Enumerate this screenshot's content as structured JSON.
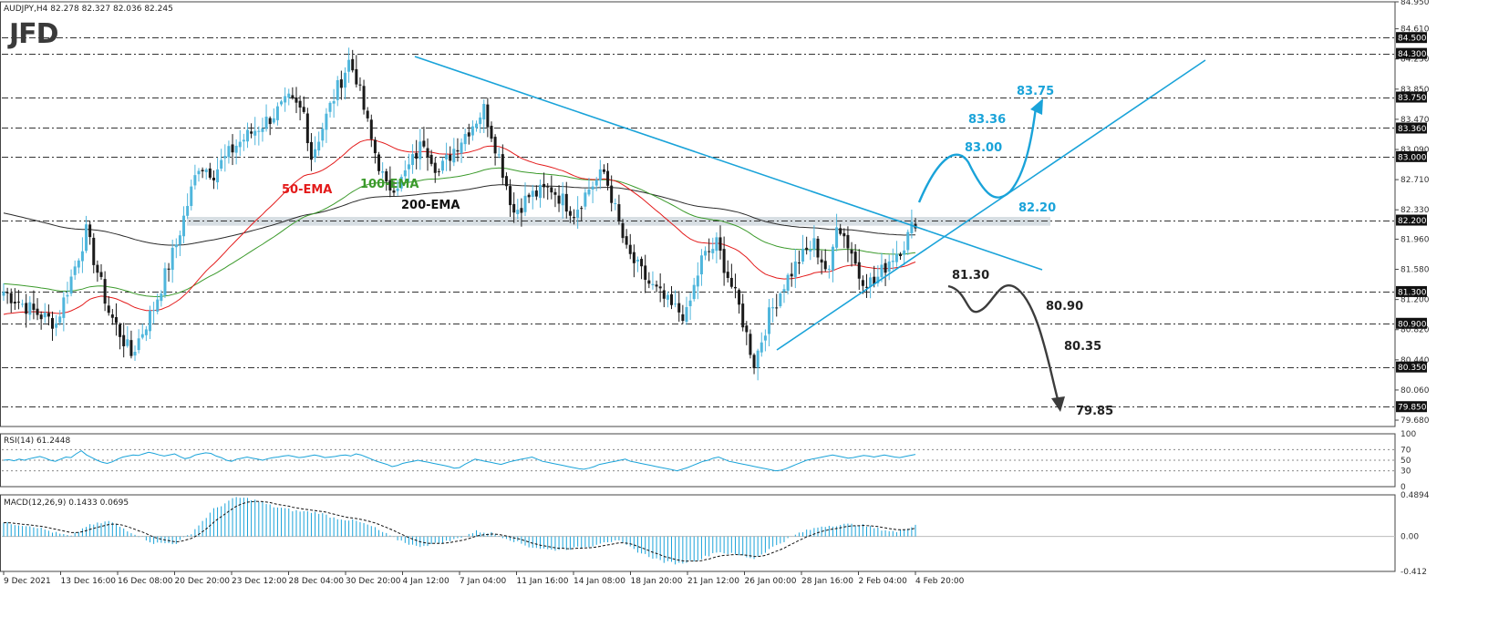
{
  "header": {
    "symbol_line": "AUDJPY,H4  82.278 82.327 82.036 82.245",
    "logo": "JFD"
  },
  "colors": {
    "bull": "#4fb6dc",
    "bear": "#1a1a1a",
    "ema50": "#e31b1b",
    "ema100": "#3b9a2b",
    "ema200": "#2a2a2a",
    "trend": "#1aa3d9",
    "bear_path": "#3c3c3c",
    "zone": "#c9d3da"
  },
  "chart_data": [
    {
      "type": "candlestick",
      "title": "AUDJPY,H4",
      "ohlc_readout": [
        82.278,
        82.327,
        82.036,
        82.245
      ],
      "ylim": [
        79.6,
        84.95
      ],
      "y_ticks": [
        "84.950",
        "84.610",
        "84.300",
        "84.230",
        "83.850",
        "83.470",
        "83.360",
        "83.090",
        "83.000",
        "82.710",
        "82.330",
        "82.200",
        "81.960",
        "81.580",
        "81.300",
        "81.200",
        "80.900",
        "80.820",
        "80.440",
        "80.350",
        "80.060",
        "79.850",
        "79.680"
      ],
      "highlighted_levels": [
        "84.500",
        "84.300",
        "83.750",
        "83.360",
        "83.000",
        "82.200",
        "81.300",
        "80.900",
        "80.350",
        "79.850"
      ],
      "x_ticks": [
        "9 Dec 2021",
        "13 Dec 16:00",
        "16 Dec 08:00",
        "20 Dec 20:00",
        "23 Dec 12:00",
        "28 Dec 04:00",
        "30 Dec 20:00",
        "4 Jan 12:00",
        "7 Jan 04:00",
        "11 Jan 16:00",
        "14 Jan 08:00",
        "18 Jan 20:00",
        "21 Jan 12:00",
        "26 Jan 00:00",
        "28 Jan 16:00",
        "2 Feb 04:00",
        "4 Feb 20:00"
      ],
      "price_waypoints": [
        [
          0,
          81.3
        ],
        [
          8,
          81.05
        ],
        [
          14,
          80.9
        ],
        [
          22,
          82.05
        ],
        [
          28,
          81.05
        ],
        [
          34,
          80.5
        ],
        [
          40,
          81.1
        ],
        [
          46,
          81.9
        ],
        [
          52,
          82.9
        ],
        [
          56,
          82.8
        ],
        [
          62,
          83.15
        ],
        [
          70,
          83.45
        ],
        [
          76,
          83.7
        ],
        [
          80,
          83.55
        ],
        [
          82,
          83.0
        ],
        [
          88,
          83.75
        ],
        [
          92,
          84.2
        ],
        [
          94,
          84.0
        ],
        [
          98,
          83.2
        ],
        [
          102,
          82.6
        ],
        [
          106,
          82.7
        ],
        [
          112,
          83.2
        ],
        [
          116,
          82.8
        ],
        [
          120,
          83.1
        ],
        [
          128,
          83.6
        ],
        [
          132,
          83.0
        ],
        [
          136,
          82.3
        ],
        [
          140,
          82.5
        ],
        [
          146,
          82.6
        ],
        [
          152,
          82.3
        ],
        [
          156,
          82.6
        ],
        [
          160,
          82.8
        ],
        [
          162,
          82.5
        ],
        [
          166,
          81.8
        ],
        [
          172,
          81.4
        ],
        [
          178,
          81.1
        ],
        [
          182,
          81.0
        ],
        [
          186,
          81.7
        ],
        [
          190,
          81.9
        ],
        [
          196,
          81.1
        ],
        [
          200,
          80.4
        ],
        [
          204,
          81.0
        ],
        [
          208,
          81.4
        ],
        [
          212,
          81.7
        ],
        [
          216,
          81.9
        ],
        [
          220,
          81.5
        ],
        [
          222,
          82.2
        ],
        [
          226,
          81.8
        ],
        [
          228,
          81.5
        ],
        [
          232,
          81.4
        ],
        [
          236,
          81.7
        ],
        [
          240,
          81.9
        ],
        [
          243,
          82.2
        ]
      ],
      "ema_labels": [
        "50-EMA",
        "100-EMA",
        "200-EMA"
      ],
      "level_labels": [
        "83.75",
        "83.36",
        "83.00",
        "82.20",
        "81.30",
        "80.90",
        "80.35",
        "79.85"
      ]
    },
    {
      "type": "line",
      "title": "RSI(14) 61.2448",
      "ylim": [
        0,
        100
      ],
      "y_ticks": [
        "100",
        "70",
        "50",
        "30",
        "0"
      ],
      "series": [
        {
          "values": [
            50,
            51,
            49,
            52,
            50,
            53,
            55,
            57,
            54,
            50,
            48,
            52,
            56,
            55,
            62,
            68,
            60,
            55,
            50,
            46,
            44,
            47,
            52,
            56,
            58,
            60,
            59,
            62,
            65,
            63,
            60,
            58,
            60,
            62,
            57,
            53,
            55,
            60,
            62,
            64,
            63,
            58,
            55,
            50,
            48,
            52,
            54,
            56,
            54,
            52,
            50,
            53,
            55,
            56,
            58,
            59,
            57,
            55,
            56,
            58,
            60,
            58,
            55,
            56,
            57,
            59,
            60,
            58,
            62,
            60,
            56,
            52,
            48,
            45,
            42,
            38,
            40,
            44,
            46,
            48,
            50,
            48,
            46,
            44,
            42,
            40,
            38,
            35,
            36,
            42,
            47,
            52,
            50,
            48,
            46,
            44,
            42,
            45,
            48,
            50,
            52,
            54,
            56,
            52,
            48,
            46,
            44,
            42,
            40,
            38,
            36,
            34,
            33,
            35,
            38,
            42,
            44,
            46,
            48,
            50,
            52,
            48,
            46,
            44,
            42,
            40,
            38,
            36,
            34,
            32,
            30,
            33,
            36,
            40,
            44,
            48,
            50,
            54,
            56,
            52,
            48,
            46,
            44,
            42,
            40,
            38,
            36,
            34,
            32,
            30,
            31,
            34,
            38,
            42,
            46,
            50,
            52,
            54,
            56,
            58,
            60,
            58,
            56,
            54,
            55,
            57,
            59,
            58,
            56,
            58,
            60,
            58,
            56,
            55,
            57,
            59,
            61
          ]
        }
      ]
    },
    {
      "type": "bar",
      "title": "MACD(12,26,9) 0.1433 0.0695",
      "ylim": [
        -0.412,
        0.4894
      ],
      "y_ticks": [
        "0.4894",
        "0.00",
        "-0.412"
      ],
      "histogram_waypoints": [
        [
          0,
          0.16
        ],
        [
          8,
          0.12
        ],
        [
          14,
          0.04
        ],
        [
          18,
          0.0
        ],
        [
          22,
          0.12
        ],
        [
          28,
          0.18
        ],
        [
          34,
          0.05
        ],
        [
          40,
          -0.08
        ],
        [
          46,
          -0.08
        ],
        [
          50,
          0.04
        ],
        [
          56,
          0.32
        ],
        [
          62,
          0.46
        ],
        [
          66,
          0.44
        ],
        [
          72,
          0.35
        ],
        [
          78,
          0.3
        ],
        [
          84,
          0.28
        ],
        [
          88,
          0.22
        ],
        [
          94,
          0.18
        ],
        [
          98,
          0.12
        ],
        [
          104,
          -0.02
        ],
        [
          110,
          -0.12
        ],
        [
          116,
          -0.08
        ],
        [
          120,
          -0.04
        ],
        [
          126,
          0.06
        ],
        [
          130,
          0.04
        ],
        [
          134,
          -0.02
        ],
        [
          140,
          -0.12
        ],
        [
          146,
          -0.16
        ],
        [
          152,
          -0.14
        ],
        [
          156,
          -0.12
        ],
        [
          160,
          -0.06
        ],
        [
          164,
          -0.06
        ],
        [
          170,
          -0.2
        ],
        [
          176,
          -0.3
        ],
        [
          180,
          -0.32
        ],
        [
          186,
          -0.26
        ],
        [
          190,
          -0.18
        ],
        [
          196,
          -0.22
        ],
        [
          200,
          -0.26
        ],
        [
          206,
          -0.1
        ],
        [
          212,
          0.04
        ],
        [
          218,
          0.12
        ],
        [
          224,
          0.14
        ],
        [
          228,
          0.14
        ],
        [
          232,
          0.1
        ],
        [
          238,
          0.05
        ],
        [
          243,
          0.14
        ]
      ]
    }
  ]
}
